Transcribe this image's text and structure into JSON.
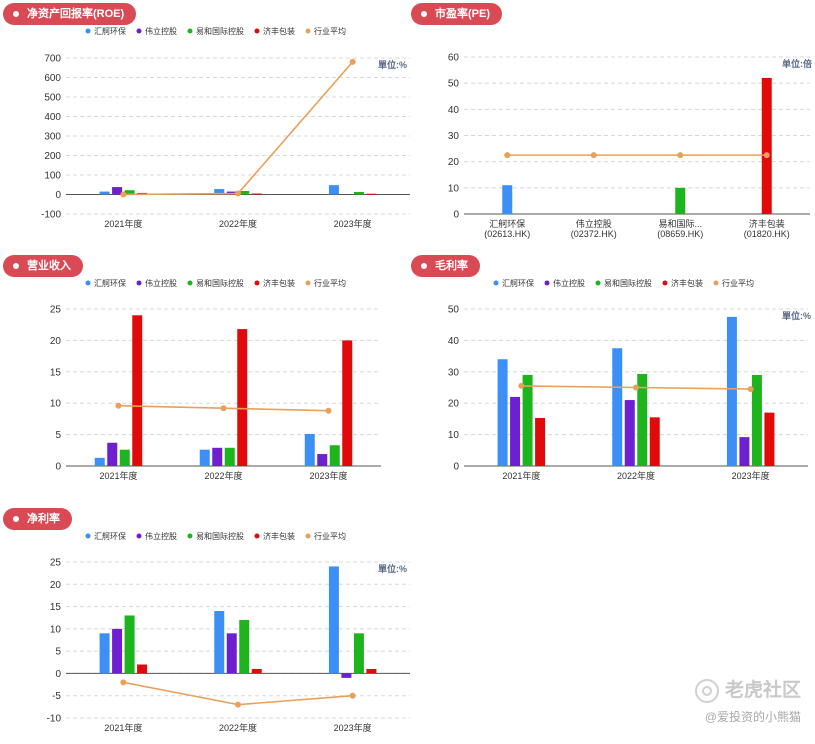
{
  "watermark": {
    "line1": "老虎社区",
    "line2": "@爱投资的小熊猫"
  },
  "legend_colors": [
    "#3b8ff5",
    "#6e1fd0",
    "#1eb41e",
    "#e10a0a",
    "#e8a05a"
  ],
  "chart_data": [
    {
      "id": "roe",
      "type": "bar+line",
      "badge": "净资产回报率(ROE)",
      "unit_label": "單位:%",
      "legend": [
        "汇舸环保",
        "伟立控股",
        "易和国际控股",
        "济丰包装",
        "行业平均"
      ],
      "categories": [
        "2021年度",
        "2022年度",
        "2023年度"
      ],
      "ylim": [
        -100,
        700
      ],
      "yticks": [
        -100,
        0,
        100,
        200,
        300,
        400,
        500,
        600,
        700
      ],
      "series": [
        {
          "name": "汇舸环保",
          "values": [
            15,
            28,
            48
          ]
        },
        {
          "name": "伟立控股",
          "values": [
            38,
            15,
            null
          ]
        },
        {
          "name": "易和国际控股",
          "values": [
            22,
            18,
            13
          ]
        },
        {
          "name": "济丰包装",
          "values": [
            8,
            5,
            4
          ]
        }
      ],
      "line": {
        "name": "行业平均",
        "values": [
          0,
          5,
          680
        ]
      }
    },
    {
      "id": "pe",
      "type": "bar+line",
      "badge": "市盈率(PE)",
      "unit_label": "单位:倍",
      "legend": [],
      "categories": [
        "汇舸环保\n(02613.HK)",
        "伟立控股\n(02372.HK)",
        "易和国际...\n(08659.HK)",
        "济丰包装\n(01820.HK)"
      ],
      "ylim": [
        0,
        60
      ],
      "yticks": [
        0,
        10,
        20,
        30,
        40,
        50,
        60
      ],
      "bars": [
        {
          "value": 11,
          "color": "#3b8ff5"
        },
        {
          "value": null,
          "color": "#6e1fd0"
        },
        {
          "value": 10,
          "color": "#1eb41e"
        },
        {
          "value": 52,
          "color": "#e10a0a"
        }
      ],
      "line": {
        "name": "行业平均",
        "values": [
          22.5,
          22.5,
          22.5,
          22.5
        ]
      }
    },
    {
      "id": "revenue",
      "type": "bar+line",
      "badge": "营业收入",
      "unit_label": "",
      "legend": [
        "汇舸环保",
        "伟立控股",
        "易和国际控股",
        "济丰包装",
        "行业平均"
      ],
      "categories": [
        "2021年度",
        "2022年度",
        "2023年度"
      ],
      "ylim": [
        0,
        25
      ],
      "yticks": [
        0,
        5,
        10,
        15,
        20,
        25
      ],
      "series": [
        {
          "name": "汇舸环保",
          "values": [
            1.3,
            2.6,
            5.1
          ]
        },
        {
          "name": "伟立控股",
          "values": [
            3.7,
            2.9,
            1.9
          ]
        },
        {
          "name": "易和国际控股",
          "values": [
            2.6,
            2.9,
            3.3
          ]
        },
        {
          "name": "济丰包装",
          "values": [
            24,
            21.8,
            20
          ]
        }
      ],
      "line": {
        "name": "行业平均",
        "values": [
          9.6,
          9.2,
          8.8
        ]
      }
    },
    {
      "id": "gross",
      "type": "bar+line",
      "badge": "毛利率",
      "unit_label": "單位:%",
      "legend": [
        "汇舸环保",
        "伟立控股",
        "易和国际控股",
        "济丰包装",
        "行业平均"
      ],
      "categories": [
        "2021年度",
        "2022年度",
        "2023年度"
      ],
      "ylim": [
        0,
        50
      ],
      "yticks": [
        0,
        10,
        20,
        30,
        40,
        50
      ],
      "series": [
        {
          "name": "汇舸环保",
          "values": [
            34,
            37.5,
            47.5
          ]
        },
        {
          "name": "伟立控股",
          "values": [
            22,
            21,
            9.2
          ]
        },
        {
          "name": "易和国际控股",
          "values": [
            29,
            29.3,
            29
          ]
        },
        {
          "name": "济丰包装",
          "values": [
            15.3,
            15.5,
            17
          ]
        }
      ],
      "line": {
        "name": "行业平均",
        "values": [
          25.5,
          25,
          24.5
        ]
      }
    },
    {
      "id": "net",
      "type": "bar+line",
      "badge": "净利率",
      "unit_label": "單位:%",
      "legend": [
        "汇舸环保",
        "伟立控股",
        "易和国际控股",
        "济丰包装",
        "行业平均"
      ],
      "categories": [
        "2021年度",
        "2022年度",
        "2023年度"
      ],
      "ylim": [
        -10,
        25
      ],
      "yticks": [
        -10,
        -5,
        0,
        5,
        10,
        15,
        20,
        25
      ],
      "series": [
        {
          "name": "汇舸环保",
          "values": [
            9,
            14,
            24
          ]
        },
        {
          "name": "伟立控股",
          "values": [
            10,
            9,
            -1
          ]
        },
        {
          "name": "易和国际控股",
          "values": [
            13,
            12,
            9
          ]
        },
        {
          "name": "济丰包装",
          "values": [
            2,
            1,
            1
          ]
        }
      ],
      "line": {
        "name": "行业平均",
        "values": [
          -2,
          -7,
          -5
        ]
      }
    }
  ]
}
